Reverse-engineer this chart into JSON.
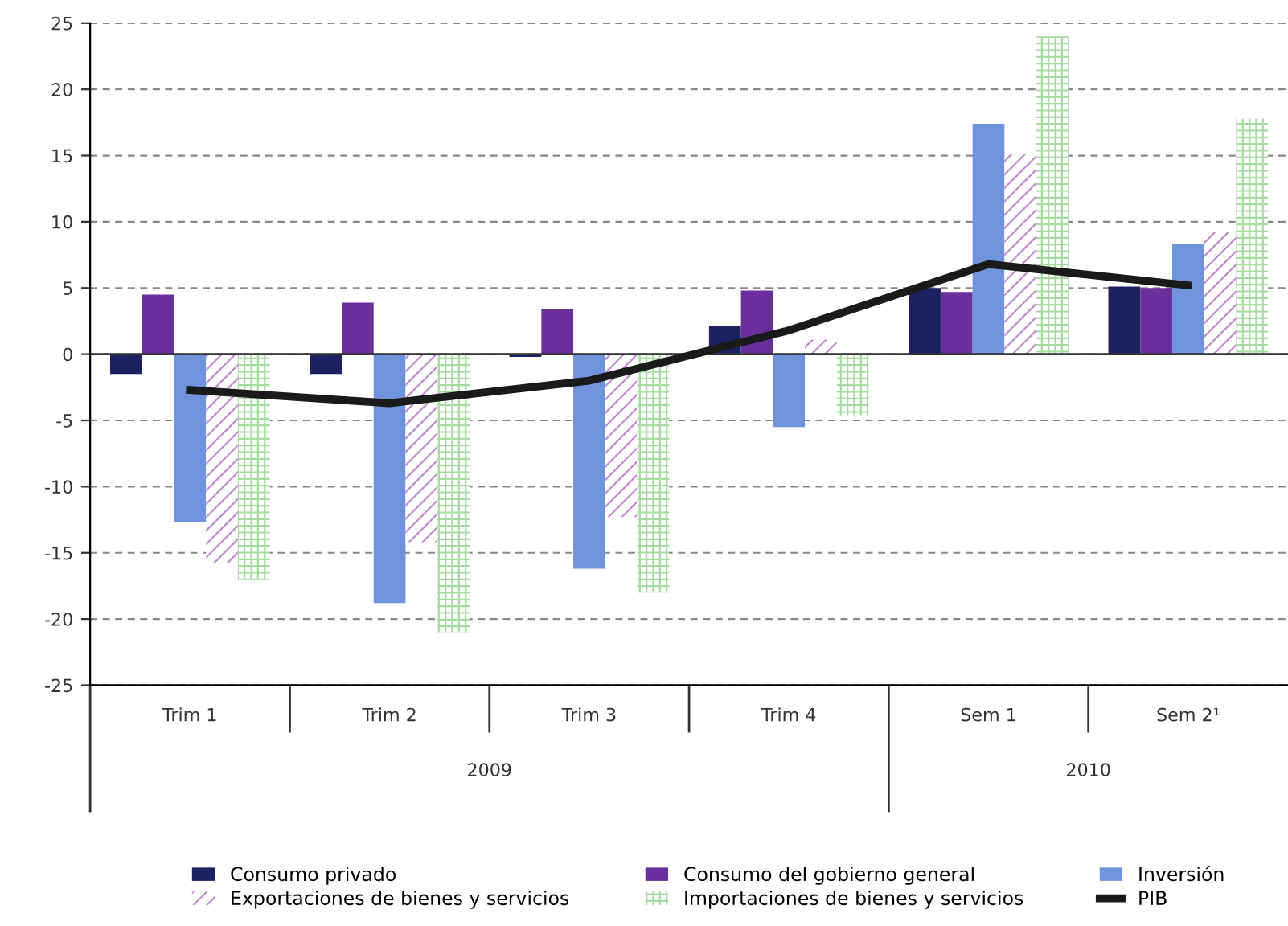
{
  "chart_data": {
    "type": "bar",
    "categories": [
      "Trim 1",
      "Trim 2",
      "Trim 3",
      "Trim 4",
      "Sem 1",
      "Sem 2¹"
    ],
    "series": [
      {
        "name": "Consumo privado",
        "color": "#1c2260",
        "values": [
          -1.5,
          -1.5,
          -0.2,
          2.1,
          5.0,
          5.1
        ]
      },
      {
        "name": "Consumo del gobierno general",
        "color": "#6a2f9a",
        "values": [
          4.5,
          3.9,
          3.4,
          4.8,
          4.7,
          5.0
        ]
      },
      {
        "name": "Inversión",
        "color": "#6f93dc",
        "values": [
          -12.7,
          -18.8,
          -16.2,
          -5.5,
          17.4,
          8.3
        ]
      },
      {
        "name": "Exportaciones de bienes y servicios",
        "color": "#c48ad0",
        "values": [
          -15.8,
          -14.2,
          -12.3,
          1.1,
          15.1,
          9.2
        ]
      },
      {
        "name": "Importaciones de bienes y servicios",
        "color": "#a6dca0",
        "values": [
          -17.0,
          -21.0,
          -18.0,
          -4.6,
          24.0,
          17.8
        ]
      },
      {
        "name": "PIB",
        "type": "line",
        "color": "#1a1a1a",
        "values": [
          -2.7,
          -3.7,
          -2.0,
          1.8,
          6.8,
          5.2
        ]
      }
    ],
    "ylim": [
      -25,
      25
    ],
    "yticks": [
      -25,
      -20,
      -15,
      -10,
      -5,
      0,
      5,
      10,
      15,
      20,
      25
    ],
    "grid": "y",
    "legend": "bottom",
    "marker": "none",
    "line_style": "solid",
    "annotations": [
      "2009",
      "2010"
    ]
  }
}
